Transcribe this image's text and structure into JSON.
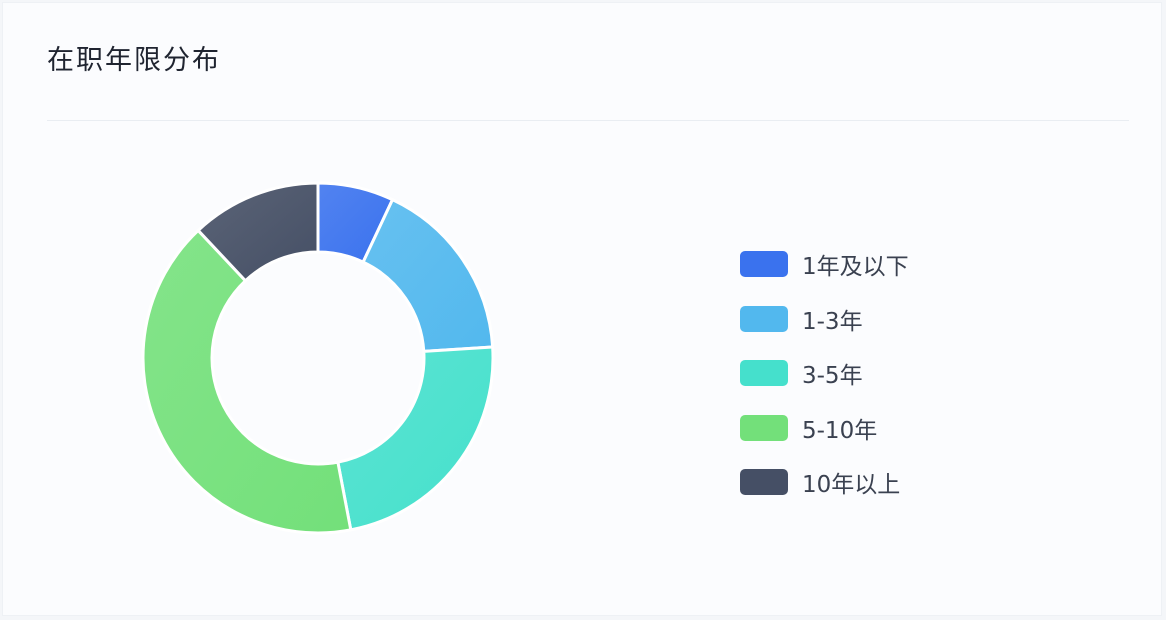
{
  "card": {
    "title": "在职年限分布"
  },
  "chart_data": {
    "type": "pie",
    "donut": true,
    "title": "在职年限分布",
    "categories": [
      "1年及以下",
      "1-3年",
      "3-5年",
      "5-10年",
      "10年以上"
    ],
    "values": [
      7,
      17,
      23,
      41,
      12
    ],
    "unit": "%",
    "colors": [
      "#3a72ee",
      "#52b8ee",
      "#45e0cc",
      "#73e07a",
      "#454f65"
    ],
    "legend": "right"
  }
}
